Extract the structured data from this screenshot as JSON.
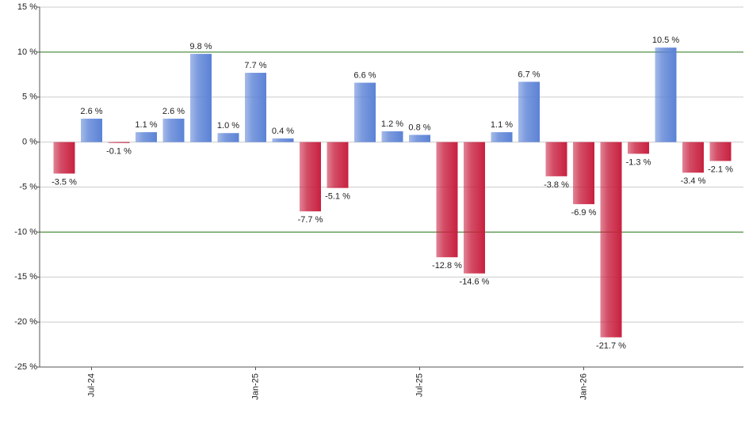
{
  "chart_data": {
    "type": "bar",
    "categories": [
      null,
      "Jul-24",
      null,
      null,
      null,
      null,
      null,
      "Jan-25",
      null,
      null,
      null,
      null,
      null,
      "Jul-25",
      null,
      null,
      null,
      null,
      null,
      "Jan-26",
      null,
      null,
      null,
      null,
      null
    ],
    "values": [
      -3.5,
      2.6,
      -0.1,
      1.1,
      2.6,
      9.8,
      1.0,
      7.7,
      0.4,
      -7.7,
      -5.1,
      6.6,
      1.2,
      0.8,
      -12.8,
      -14.6,
      1.1,
      6.7,
      -3.8,
      -6.9,
      -21.7,
      -1.3,
      10.5,
      -3.4,
      -2.1
    ],
    "value_labels": [
      "-3.5 %",
      "2.6 %",
      "-0.1 %",
      "1.1 %",
      "2.6 %",
      "9.8 %",
      "1.0 %",
      "7.7 %",
      "0.4 %",
      "-7.7 %",
      "-5.1 %",
      "6.6 %",
      "1.2 %",
      "0.8 %",
      "-12.8 %",
      "-14.6 %",
      "1.1 %",
      "6.7 %",
      "-3.8 %",
      "-6.9 %",
      "-21.7 %",
      "-1.3 %",
      "10.5 %",
      "-3.4 %",
      "-2.1 %"
    ],
    "positive_color": "#5b82d6",
    "negative_color": "#c8203f",
    "ylim": [
      -25,
      15
    ],
    "yticks": [
      {
        "value": -25,
        "label": "-25 %"
      },
      {
        "value": -20,
        "label": "-20 %"
      },
      {
        "value": -15,
        "label": "-15 %"
      },
      {
        "value": -10,
        "label": "-10 %"
      },
      {
        "value": -5,
        "label": "-5 %"
      },
      {
        "value": 0,
        "label": "0 %"
      },
      {
        "value": 5,
        "label": "5 %"
      },
      {
        "value": 10,
        "label": "10 %"
      },
      {
        "value": 15,
        "label": "15 %"
      }
    ],
    "reference_lines": [
      -10,
      10
    ],
    "reference_color": "#2e7d1e",
    "grid": true
  }
}
